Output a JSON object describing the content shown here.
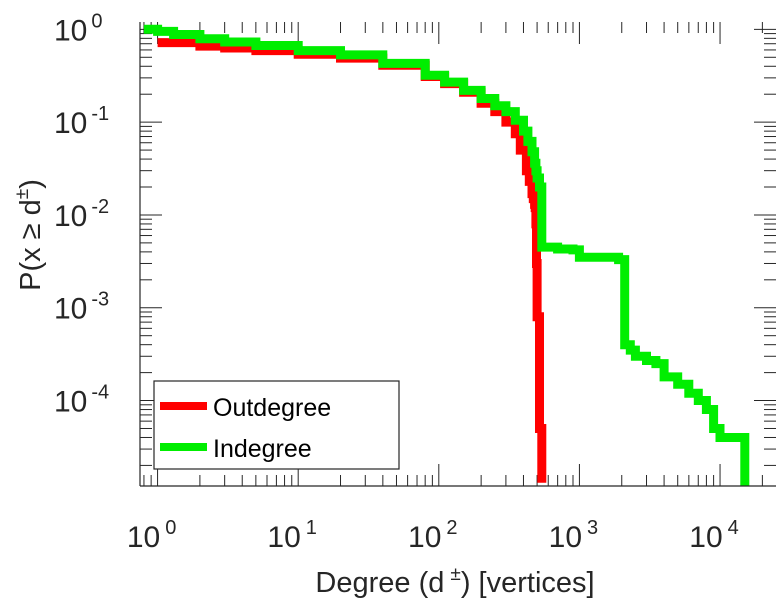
{
  "chart_data": {
    "type": "line",
    "x_scale": "log",
    "y_scale": "log",
    "xlim": [
      0.75,
      25000
    ],
    "ylim": [
      1.2e-05,
      1.2
    ],
    "xlabel": {
      "main": "Degree (d",
      "sup": "±",
      "rest": ") [vertices]"
    },
    "ylabel": {
      "main": "P(x ≥ d",
      "sup": "±",
      "rest": ")"
    },
    "x_ticks": [
      {
        "base": "10",
        "exp": "0",
        "value": 1
      },
      {
        "base": "10",
        "exp": "1",
        "value": 10
      },
      {
        "base": "10",
        "exp": "2",
        "value": 100
      },
      {
        "base": "10",
        "exp": "3",
        "value": 1000
      },
      {
        "base": "10",
        "exp": "4",
        "value": 10000
      }
    ],
    "y_ticks": [
      {
        "base": "10",
        "exp": "0",
        "value": 1
      },
      {
        "base": "10",
        "exp": "-1",
        "value": 0.1
      },
      {
        "base": "10",
        "exp": "-2",
        "value": 0.01
      },
      {
        "base": "10",
        "exp": "-3",
        "value": 0.001
      },
      {
        "base": "10",
        "exp": "-4",
        "value": 0.0001
      }
    ],
    "legend_position": "bottom-left",
    "series": [
      {
        "name": "Outdegree",
        "color": "#ff0000",
        "x": [
          1,
          2,
          3,
          5,
          10,
          20,
          40,
          80,
          110,
          150,
          200,
          250,
          300,
          350,
          380,
          420,
          440,
          460,
          470,
          480,
          485,
          490,
          495,
          500,
          520,
          540
        ],
        "y": [
          0.72,
          0.66,
          0.63,
          0.59,
          0.54,
          0.49,
          0.41,
          0.31,
          0.26,
          0.21,
          0.16,
          0.13,
          0.1,
          0.075,
          0.05,
          0.03,
          0.023,
          0.017,
          0.015,
          0.013,
          0.012,
          0.008,
          0.003,
          0.0008,
          5e-05,
          1.3e-05
        ]
      },
      {
        "name": "Indegree",
        "color": "#00ee00",
        "x": [
          0.8,
          1,
          1.3,
          2,
          3,
          5,
          10,
          20,
          40,
          80,
          110,
          150,
          200,
          250,
          300,
          350,
          400,
          430,
          460,
          480,
          490,
          500,
          520,
          540,
          700,
          900,
          1000,
          1200,
          1500,
          1900,
          2100,
          2300,
          2500,
          3000,
          3500,
          4000,
          5000,
          6000,
          7000,
          8000,
          9000,
          10000,
          12000,
          14000,
          15000
        ],
        "y": [
          1,
          0.95,
          0.88,
          0.79,
          0.73,
          0.67,
          0.59,
          0.53,
          0.43,
          0.32,
          0.27,
          0.22,
          0.18,
          0.15,
          0.13,
          0.105,
          0.08,
          0.062,
          0.048,
          0.036,
          0.03,
          0.025,
          0.02,
          0.0045,
          0.0043,
          0.0042,
          0.0035,
          0.0035,
          0.0035,
          0.0033,
          0.0004,
          0.00035,
          0.0003,
          0.00027,
          0.00025,
          0.00018,
          0.00015,
          0.00012,
          0.0001,
          8e-05,
          5e-05,
          4e-05,
          4e-05,
          4e-05,
          1.2e-05
        ]
      }
    ]
  }
}
